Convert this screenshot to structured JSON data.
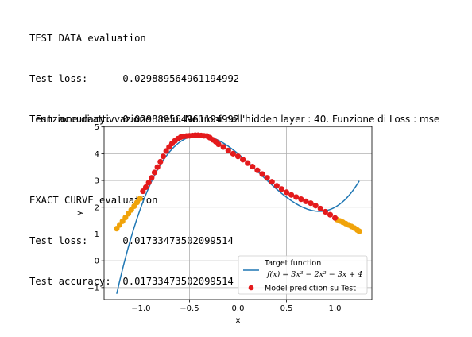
{
  "console": {
    "lines": [
      "TEST DATA evaluation",
      "Test loss:      0.029889564961194992",
      "Test accuracy:  0.029889564961194992",
      "",
      "EXACT CURVE evaluation",
      "Test loss:      0.01733473502099514",
      "Test accuracy:  0.01733473502099514"
    ]
  },
  "chart_data": {
    "type": "line",
    "title": "Funzione di attivvazione : relu. Neuroni nell'hidden layer : 40. Funzione di Loss : mse",
    "xlabel": "x",
    "ylabel": "y",
    "xlim": [
      -1.38,
      1.38
    ],
    "ylim": [
      -1.45,
      5.02
    ],
    "xticks": [
      -1.0,
      -0.5,
      0.0,
      0.5,
      1.0
    ],
    "xtick_labels": [
      "−1.0",
      "−0.5",
      "0.0",
      "0.5",
      "1.0"
    ],
    "yticks": [
      -1,
      0,
      1,
      2,
      3,
      4,
      5
    ],
    "ytick_labels": [
      "−1",
      "0",
      "1",
      "2",
      "3",
      "4",
      "5"
    ],
    "grid": true,
    "legend_position": "lower-right",
    "series": [
      {
        "name": "Target function",
        "name_line2": "f(x) = 3x³ − 2x² − 3x + 4",
        "kind": "line",
        "color": "#1f77b4",
        "formula": {
          "a3": 3,
          "a2": -2,
          "a1": -3,
          "a0": 4
        },
        "x_range": [
          -1.25,
          1.25
        ]
      },
      {
        "name": "Model prediction su Test",
        "kind": "scatter",
        "color": "#e41a1c",
        "x": [
          -0.98,
          -0.95,
          -0.92,
          -0.89,
          -0.86,
          -0.83,
          -0.8,
          -0.77,
          -0.74,
          -0.71,
          -0.68,
          -0.65,
          -0.62,
          -0.59,
          -0.56,
          -0.53,
          -0.5,
          -0.47,
          -0.44,
          -0.41,
          -0.38,
          -0.35,
          -0.32,
          -0.29,
          -0.26,
          -0.23,
          -0.2,
          -0.15,
          -0.1,
          -0.05,
          0.0,
          0.05,
          0.1,
          0.15,
          0.2,
          0.25,
          0.3,
          0.35,
          0.4,
          0.45,
          0.5,
          0.55,
          0.6,
          0.65,
          0.7,
          0.75,
          0.8,
          0.85,
          0.9,
          0.95,
          1.0
        ],
        "y": [
          2.6,
          2.75,
          2.92,
          3.1,
          3.3,
          3.5,
          3.7,
          3.9,
          4.1,
          4.25,
          4.38,
          4.48,
          4.56,
          4.62,
          4.65,
          4.66,
          4.67,
          4.68,
          4.69,
          4.69,
          4.68,
          4.67,
          4.66,
          4.6,
          4.52,
          4.45,
          4.35,
          4.25,
          4.12,
          4.0,
          3.9,
          3.78,
          3.65,
          3.52,
          3.38,
          3.24,
          3.1,
          2.95,
          2.8,
          2.68,
          2.56,
          2.46,
          2.38,
          2.3,
          2.22,
          2.15,
          2.06,
          1.95,
          1.83,
          1.72,
          1.6
        ]
      },
      {
        "name": "",
        "kind": "scatter",
        "color": "#f0a30a",
        "x": [
          -1.25,
          -1.22,
          -1.19,
          -1.16,
          -1.13,
          -1.1,
          -1.07,
          -1.04,
          -1.01,
          1.02,
          1.05,
          1.08,
          1.11,
          1.14,
          1.17,
          1.2,
          1.23,
          1.25
        ],
        "y": [
          1.2,
          1.34,
          1.48,
          1.62,
          1.76,
          1.9,
          2.04,
          2.18,
          2.32,
          1.54,
          1.49,
          1.44,
          1.39,
          1.34,
          1.28,
          1.22,
          1.15,
          1.1
        ]
      }
    ]
  }
}
